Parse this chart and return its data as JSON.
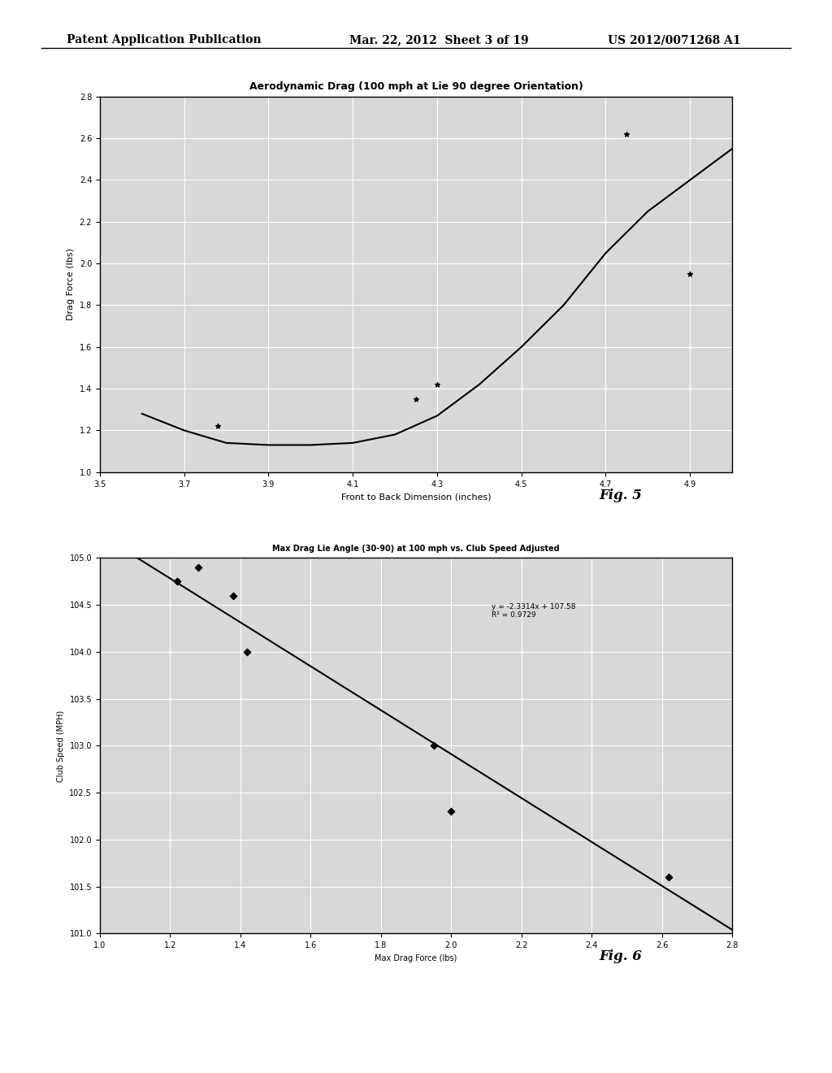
{
  "header_left": "Patent Application Publication",
  "header_mid": "Mar. 22, 2012  Sheet 3 of 19",
  "header_right": "US 2012/0071268 A1",
  "fig5_caption": "Fig. 5",
  "fig6_caption": "Fig. 6",
  "chart1": {
    "title": "Aerodynamic Drag (100 mph at Lie 90 degree Orientation)",
    "xlabel": "Front to Back Dimension (inches)",
    "ylabel": "Drag Force (lbs)",
    "xlim": [
      3.5,
      5.0
    ],
    "ylim": [
      1.0,
      2.8
    ],
    "xticks": [
      3.5,
      3.7,
      3.9,
      4.1,
      4.3,
      4.5,
      4.7,
      4.9
    ],
    "yticks": [
      1.0,
      1.2,
      1.4,
      1.6,
      1.8,
      2.0,
      2.2,
      2.4,
      2.6,
      2.8
    ],
    "scatter_x": [
      3.78,
      4.25,
      4.3,
      4.75,
      4.9
    ],
    "scatter_y": [
      1.22,
      1.35,
      1.42,
      2.62,
      1.95
    ],
    "curve_x": [
      3.6,
      3.7,
      3.8,
      3.9,
      4.0,
      4.1,
      4.2,
      4.3,
      4.4,
      4.5,
      4.6,
      4.7,
      4.8,
      4.9,
      5.0
    ],
    "curve_y": [
      1.28,
      1.2,
      1.14,
      1.13,
      1.13,
      1.14,
      1.18,
      1.27,
      1.42,
      1.6,
      1.8,
      2.05,
      2.25,
      2.4,
      2.55
    ],
    "bg_color": "#d8d8d8",
    "grid_color": "#ffffff",
    "line_color": "#000000",
    "scatter_color": "#000000",
    "title_fontsize": 9,
    "label_fontsize": 8,
    "tick_fontsize": 7
  },
  "chart2": {
    "title": "Max Drag Lie Angle (30-90) at 100 mph vs. Club Speed Adjusted",
    "annotation": "y = -2.3314x + 107.58\nR² = 0.9729",
    "xlabel": "Max Drag Force (lbs)",
    "ylabel": "Club Speed (MPH)",
    "xlim": [
      1.0,
      2.8
    ],
    "ylim": [
      101.0,
      105.0
    ],
    "xticks": [
      1.0,
      1.2,
      1.4,
      1.6,
      1.8,
      2.0,
      2.2,
      2.4,
      2.6,
      2.8
    ],
    "yticks": [
      101.0,
      101.5,
      102.0,
      102.5,
      103.0,
      103.5,
      104.0,
      104.5,
      105.0
    ],
    "scatter_x": [
      1.22,
      1.28,
      1.38,
      1.42,
      1.95,
      2.0,
      2.62
    ],
    "scatter_y": [
      104.75,
      104.9,
      104.6,
      104.0,
      103.0,
      102.3,
      101.6
    ],
    "line_x": [
      1.0,
      2.8
    ],
    "line_y": [
      105.25,
      101.04
    ],
    "bg_color": "#d8d8d8",
    "grid_color": "#ffffff",
    "line_color": "#000000",
    "scatter_color": "#000000",
    "title_fontsize": 7,
    "label_fontsize": 7,
    "tick_fontsize": 7
  },
  "page_bg": "#ffffff",
  "header_fontsize": 10
}
